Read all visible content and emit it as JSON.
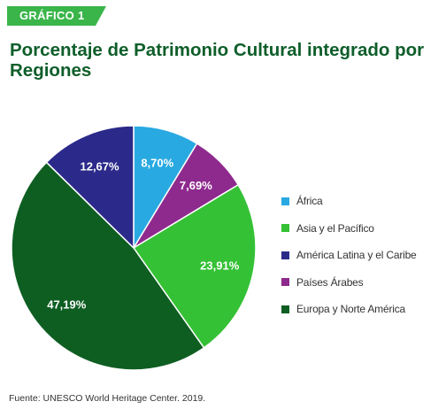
{
  "badge": {
    "text": "GRÁFICO 1",
    "color": "#3ab54a"
  },
  "title": "Porcentaje de Patrimonio Cultural integrado por Regiones",
  "source": "Fuente: UNESCO World Heritage Center. 2019.",
  "chart_data": {
    "type": "pie",
    "title": "Porcentaje de Patrimonio Cultural integrado por Regiones",
    "legend_position": "right",
    "slices": [
      {
        "name": "África",
        "value": 8.7,
        "label": "8,70%",
        "color": "#29a9e1"
      },
      {
        "name": "Países Árabes",
        "value": 7.69,
        "label": "7,69%",
        "color": "#8e2a8e"
      },
      {
        "name": "Asia y el Pacífico",
        "value": 23.91,
        "label": "23,91%",
        "color": "#35c135"
      },
      {
        "name": "Europa y Norte América",
        "value": 47.19,
        "label": "47,19%",
        "color": "#0e5e22"
      },
      {
        "name": "América Latina y el Caribe",
        "value": 12.67,
        "label": "12,67%",
        "color": "#2b2a8a"
      }
    ],
    "legend": [
      {
        "label": "África",
        "color": "#29a9e1"
      },
      {
        "label": "Asia y el Pacífico",
        "color": "#35c135"
      },
      {
        "label": "América Latina y el Caribe",
        "color": "#2b2a8a"
      },
      {
        "label": "Países Árabes",
        "color": "#8e2a8e"
      },
      {
        "label": "Europa y Norte América",
        "color": "#0e5e22"
      }
    ]
  }
}
